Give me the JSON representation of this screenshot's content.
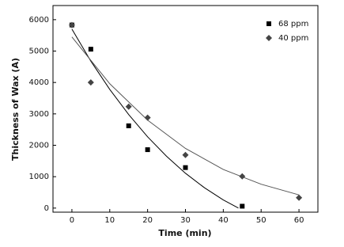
{
  "chart_data": {
    "type": "scatter",
    "x_label": "Time (min)",
    "y_label": "Thickness of Wax (A)",
    "xlim": [
      -5,
      65
    ],
    "xticks": [
      0,
      10,
      20,
      30,
      40,
      50,
      60
    ],
    "ylim": [
      -130,
      6450
    ],
    "yticks": [
      0,
      1000,
      2000,
      3000,
      4000,
      5000,
      6000
    ],
    "legend": "top-right",
    "series": [
      {
        "name": "68 ppm",
        "color": "#000000",
        "marker": "square",
        "x": [
          0,
          5,
          15,
          20,
          30,
          45
        ],
        "values": [
          5830,
          5060,
          2620,
          1860,
          1290,
          60
        ]
      },
      {
        "name": "40 ppm",
        "color": "#444444",
        "marker": "diamond",
        "x": [
          0,
          5,
          15,
          20,
          30,
          45,
          60
        ],
        "values": [
          5830,
          4000,
          3230,
          2880,
          1690,
          1010,
          330
        ]
      }
    ],
    "fits": [
      {
        "color": "#000000",
        "x": [
          0,
          5,
          10,
          15,
          20,
          25,
          30,
          35,
          40,
          44
        ],
        "values": [
          5700,
          4680,
          3780,
          2980,
          2270,
          1650,
          1110,
          650,
          260,
          0
        ]
      },
      {
        "color": "#555555",
        "x": [
          0,
          10,
          20,
          30,
          40,
          50,
          60
        ],
        "values": [
          5450,
          3960,
          2800,
          1900,
          1230,
          760,
          420
        ]
      }
    ]
  }
}
